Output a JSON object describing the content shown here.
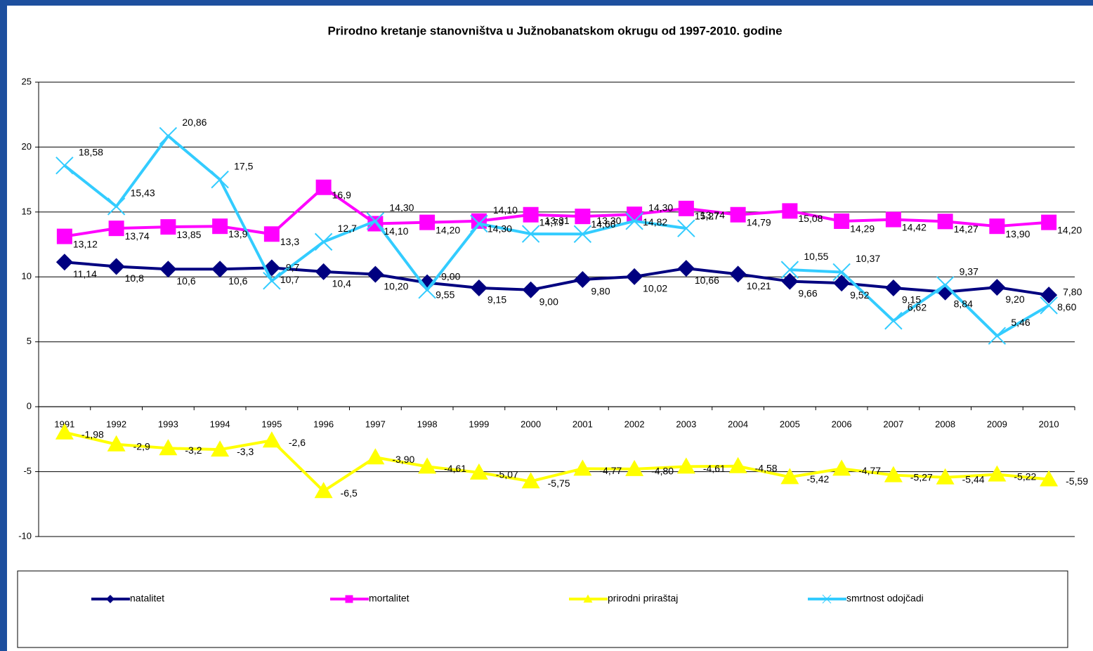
{
  "chart_data": {
    "type": "line",
    "title": "Prirodno kretanje stanovništva u Južnobanatskom okrugu od 1997-2010. godine",
    "categories": [
      "1991",
      "1992",
      "1993",
      "1994",
      "1995",
      "1996",
      "1997",
      "1998",
      "1999",
      "2000",
      "2001",
      "2002",
      "2003",
      "2004",
      "2005",
      "2006",
      "2007",
      "2008",
      "2009",
      "2010"
    ],
    "ylim": [
      -10,
      25
    ],
    "yticks": [
      -10,
      -5,
      0,
      5,
      10,
      15,
      20,
      25
    ],
    "grid": true,
    "series": [
      {
        "name": "natalitet",
        "color": "#000080",
        "marker": "diamond",
        "values": [
          11.14,
          10.8,
          10.6,
          10.6,
          10.7,
          10.4,
          10.2,
          9.55,
          9.15,
          9.0,
          9.8,
          10.02,
          10.66,
          10.21,
          9.66,
          9.52,
          9.15,
          8.84,
          9.2,
          8.6
        ],
        "value_labels": [
          "11,14",
          "10,8",
          "10,6",
          "10,6",
          "10,7",
          "10,4",
          "10,20",
          "9,55",
          "9,15",
          "9,00",
          "9,80",
          "10,02",
          "10,66",
          "10,21",
          "9,66",
          "9,52",
          "9,15",
          "8,84",
          "9,20",
          "8,60"
        ]
      },
      {
        "name": "mortalitet",
        "color": "#ff00ff",
        "marker": "square",
        "values": [
          13.12,
          13.74,
          13.85,
          13.9,
          13.3,
          16.9,
          14.1,
          14.2,
          14.3,
          14.79,
          14.66,
          14.82,
          15.27,
          14.79,
          15.08,
          14.29,
          14.42,
          14.27,
          13.9,
          14.2
        ],
        "value_labels": [
          "13,12",
          "13,74",
          "13,85",
          "13,9",
          "13,3",
          "16,9",
          "14,10",
          "14,20",
          "14,30",
          "14,79",
          "14,66",
          "14,82",
          "15,27",
          "14,79",
          "15,08",
          "14,29",
          "14,42",
          "14,27",
          "13,90",
          "14,20"
        ]
      },
      {
        "name": "prirodni priraštaj",
        "color": "#ffff00",
        "marker": "triangle",
        "values": [
          -1.98,
          -2.9,
          -3.2,
          -3.3,
          -2.6,
          -6.5,
          -3.9,
          -4.61,
          -5.07,
          -5.75,
          -4.77,
          -4.8,
          -4.61,
          -4.58,
          -5.42,
          -4.77,
          -5.27,
          -5.44,
          -5.22,
          -5.59
        ],
        "value_labels": [
          "-1,98",
          "-2,9",
          "-3,2",
          "-3,3",
          "-2,6",
          "-6,5",
          "-3,90",
          "-4,61",
          "-5,07",
          "-5,75",
          "-4,77",
          "-4,80",
          "-4,61",
          "-4,58",
          "-5,42",
          "-4,77",
          "-5,27",
          "-5,44",
          "-5,22",
          "-5,59"
        ]
      },
      {
        "name": "smrtnost odojčadi",
        "color": "#33ccff",
        "marker": "x",
        "values": [
          18.58,
          15.43,
          20.86,
          17.5,
          9.7,
          12.7,
          14.3,
          9.0,
          14.1,
          13.31,
          13.3,
          14.3,
          13.74,
          null,
          10.55,
          10.37,
          6.62,
          9.37,
          5.46,
          7.8
        ],
        "value_labels": [
          "18,58",
          "15,43",
          "20,86",
          "17,5",
          "9,7",
          "12,7",
          "14,30",
          "9,00",
          "14,10",
          "13,31",
          "13,30",
          "14,30",
          "13,74",
          null,
          "10,55",
          "10,37",
          "6,62",
          "9,37",
          "5,46",
          "7,80"
        ]
      }
    ]
  }
}
